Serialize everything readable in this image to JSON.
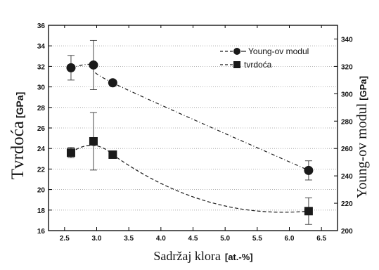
{
  "chart_data": {
    "type": "scatter",
    "x": [
      2.6,
      2.95,
      3.25,
      6.3
    ],
    "x_ticks": [
      "2.5",
      "3.0",
      "3.5",
      "4.0",
      "4.5",
      "5.0",
      "5.5",
      "6.0",
      "6.5"
    ],
    "xlim": [
      2.25,
      6.75
    ],
    "xlabel": "Sadržaj klora",
    "xlabel_unit": "[at.-%]",
    "ylabel": "Tvrdoća",
    "ylabel_unit": "[GPa]",
    "ylim": [
      16,
      36
    ],
    "y_ticks": [
      "16",
      "18",
      "20",
      "22",
      "24",
      "26",
      "28",
      "30",
      "32",
      "34",
      "36"
    ],
    "ylabel_right": "Young-ov modul",
    "ylabel_right_unit": "[GPa]",
    "ylim_right": [
      200,
      350
    ],
    "y_ticks_right": [
      "200",
      "220",
      "240",
      "260",
      "280",
      "300",
      "320",
      "340"
    ],
    "grid": "horizontal dotted",
    "legend_position": "top-right",
    "series": [
      {
        "name": "Young-ov modul",
        "axis": "right",
        "marker": "circle",
        "values": [
          319,
          321,
          308,
          244
        ],
        "errors": [
          9,
          18,
          0,
          7
        ]
      },
      {
        "name": "tvrdoća",
        "axis": "left",
        "marker": "square",
        "values": [
          23.6,
          24.7,
          23.4,
          17.9
        ],
        "errors": [
          0.5,
          2.8,
          0,
          1.3
        ]
      }
    ],
    "colors": {
      "marker": "#1a1a1a",
      "axis": "#000000",
      "grid": "#9a9a9a"
    }
  }
}
